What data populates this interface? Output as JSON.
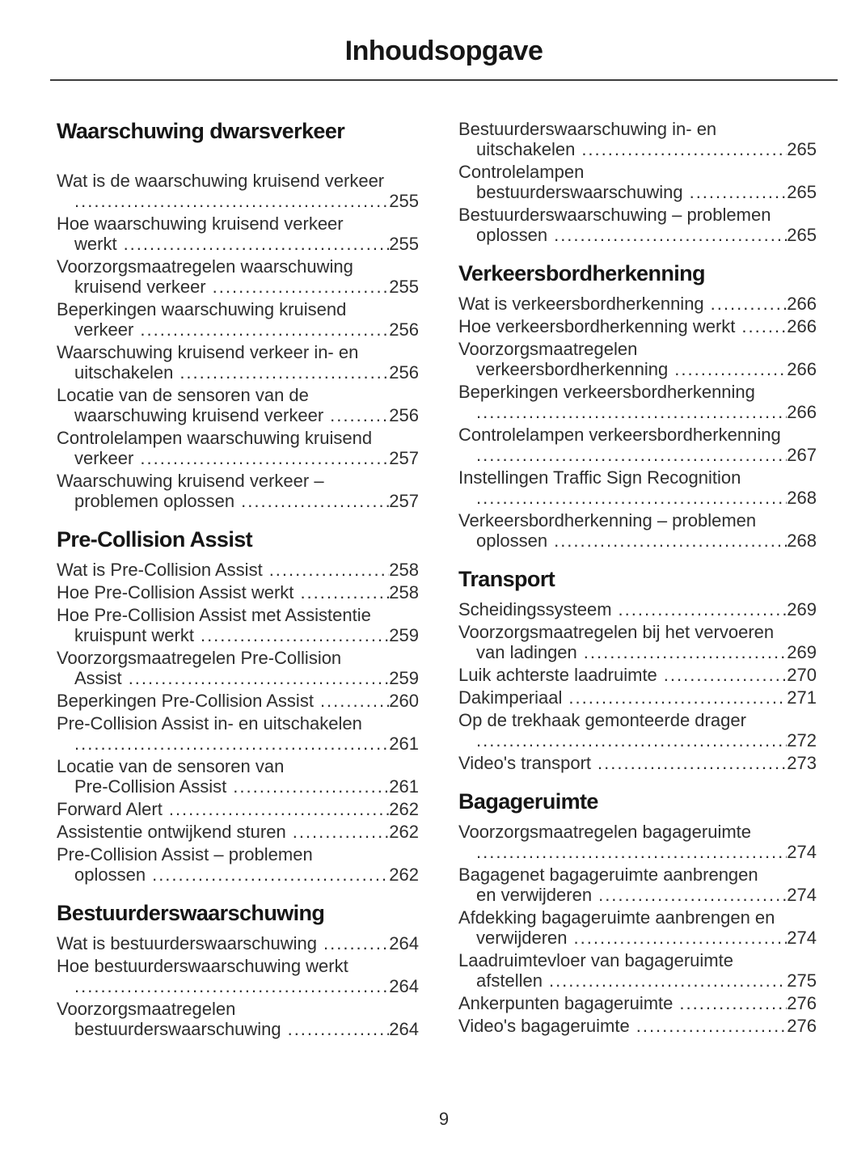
{
  "page_title": "Inhoudsopgave",
  "page_number": "9",
  "colors": {
    "body_text": "#2e2e2e",
    "heading_text": "#161616",
    "rule": "#3c3c3c"
  },
  "columns": [
    {
      "sections": [
        {
          "heading": "Waarschuwing dwarsverkeer",
          "entries": [
            {
              "lines": [
                "Wat is de waarschuwing kruisend verkeer",
                ""
              ],
              "page": "255"
            },
            {
              "lines": [
                "Hoe waarschuwing kruisend verkeer",
                "werkt"
              ],
              "page": "255"
            },
            {
              "lines": [
                "Voorzorgsmaatregelen waarschuwing",
                "kruisend verkeer"
              ],
              "page": "255"
            },
            {
              "lines": [
                "Beperkingen waarschuwing kruisend",
                "verkeer"
              ],
              "page": "256"
            },
            {
              "lines": [
                "Waarschuwing kruisend verkeer in- en",
                "uitschakelen"
              ],
              "page": "256"
            },
            {
              "lines": [
                "Locatie van de sensoren van de",
                "waarschuwing kruisend verkeer"
              ],
              "page": "256"
            },
            {
              "lines": [
                "Controlelampen waarschuwing kruisend",
                "verkeer"
              ],
              "page": "257"
            },
            {
              "lines": [
                "Waarschuwing kruisend verkeer –",
                "problemen oplossen"
              ],
              "page": "257"
            }
          ]
        },
        {
          "heading": "Pre-Collision Assist",
          "entries": [
            {
              "lines": [
                "Wat is Pre-Collision Assist"
              ],
              "page": "258"
            },
            {
              "lines": [
                "Hoe Pre-Collision Assist werkt"
              ],
              "page": "258"
            },
            {
              "lines": [
                "Hoe Pre-Collision Assist met Assistentie",
                "kruispunt werkt"
              ],
              "page": "259"
            },
            {
              "lines": [
                "Voorzorgsmaatregelen Pre-Collision",
                "Assist"
              ],
              "page": "259"
            },
            {
              "lines": [
                "Beperkingen Pre-Collision Assist"
              ],
              "page": "260"
            },
            {
              "lines": [
                "Pre-Collision Assist in- en uitschakelen",
                ""
              ],
              "page": "261"
            },
            {
              "lines": [
                "Locatie van de sensoren van",
                "Pre-Collision Assist"
              ],
              "page": "261"
            },
            {
              "lines": [
                "Forward Alert"
              ],
              "page": "262"
            },
            {
              "lines": [
                "Assistentie ontwijkend sturen"
              ],
              "page": "262"
            },
            {
              "lines": [
                "Pre-Collision Assist – problemen",
                "oplossen"
              ],
              "page": "262"
            }
          ]
        },
        {
          "heading": "Bestuurderswaarschuwing",
          "entries": [
            {
              "lines": [
                "Wat is bestuurderswaarschuwing"
              ],
              "page": "264"
            },
            {
              "lines": [
                "Hoe bestuurderswaarschuwing werkt",
                ""
              ],
              "page": "264"
            },
            {
              "lines": [
                "Voorzorgsmaatregelen",
                "bestuurderswaarschuwing"
              ],
              "page": "264"
            }
          ]
        }
      ]
    },
    {
      "sections": [
        {
          "heading": "",
          "entries": [
            {
              "lines": [
                "Bestuurderswaarschuwing in- en",
                "uitschakelen"
              ],
              "page": "265"
            },
            {
              "lines": [
                "Controlelampen",
                "bestuurderswaarschuwing"
              ],
              "page": "265"
            },
            {
              "lines": [
                "Bestuurderswaarschuwing – problemen",
                "oplossen"
              ],
              "page": "265"
            }
          ]
        },
        {
          "heading": "Verkeersbordherkenning",
          "entries": [
            {
              "lines": [
                "Wat is verkeersbordherkenning"
              ],
              "page": "266"
            },
            {
              "lines": [
                "Hoe verkeersbordherkenning werkt"
              ],
              "page": "266"
            },
            {
              "lines": [
                "Voorzorgsmaatregelen",
                "verkeersbordherkenning"
              ],
              "page": "266"
            },
            {
              "lines": [
                "Beperkingen verkeersbordherkenning",
                ""
              ],
              "page": "266"
            },
            {
              "lines": [
                "Controlelampen verkeersbordherkenning",
                ""
              ],
              "page": "267"
            },
            {
              "lines": [
                "Instellingen Traffic Sign Recognition",
                ""
              ],
              "page": "268"
            },
            {
              "lines": [
                "Verkeersbordherkenning – problemen",
                "oplossen"
              ],
              "page": "268"
            }
          ]
        },
        {
          "heading": "Transport",
          "entries": [
            {
              "lines": [
                "Scheidingssysteem"
              ],
              "page": "269"
            },
            {
              "lines": [
                "Voorzorgsmaatregelen bij het vervoeren",
                "van ladingen"
              ],
              "page": "269"
            },
            {
              "lines": [
                "Luik achterste laadruimte"
              ],
              "page": "270"
            },
            {
              "lines": [
                "Dakimperiaal"
              ],
              "page": "271"
            },
            {
              "lines": [
                "Op de trekhaak gemonteerde drager",
                ""
              ],
              "page": "272"
            },
            {
              "lines": [
                "Video's transport"
              ],
              "page": "273"
            }
          ]
        },
        {
          "heading": "Bagageruimte",
          "entries": [
            {
              "lines": [
                "Voorzorgsmaatregelen bagageruimte",
                ""
              ],
              "page": "274"
            },
            {
              "lines": [
                "Bagagenet bagageruimte aanbrengen",
                "en verwijderen"
              ],
              "page": "274"
            },
            {
              "lines": [
                "Afdekking bagageruimte aanbrengen en",
                "verwijderen"
              ],
              "page": "274"
            },
            {
              "lines": [
                "Laadruimtevloer van bagageruimte",
                "afstellen"
              ],
              "page": "275"
            },
            {
              "lines": [
                "Ankerpunten bagageruimte"
              ],
              "page": "276"
            },
            {
              "lines": [
                "Video's bagageruimte"
              ],
              "page": "276"
            }
          ]
        }
      ]
    }
  ]
}
